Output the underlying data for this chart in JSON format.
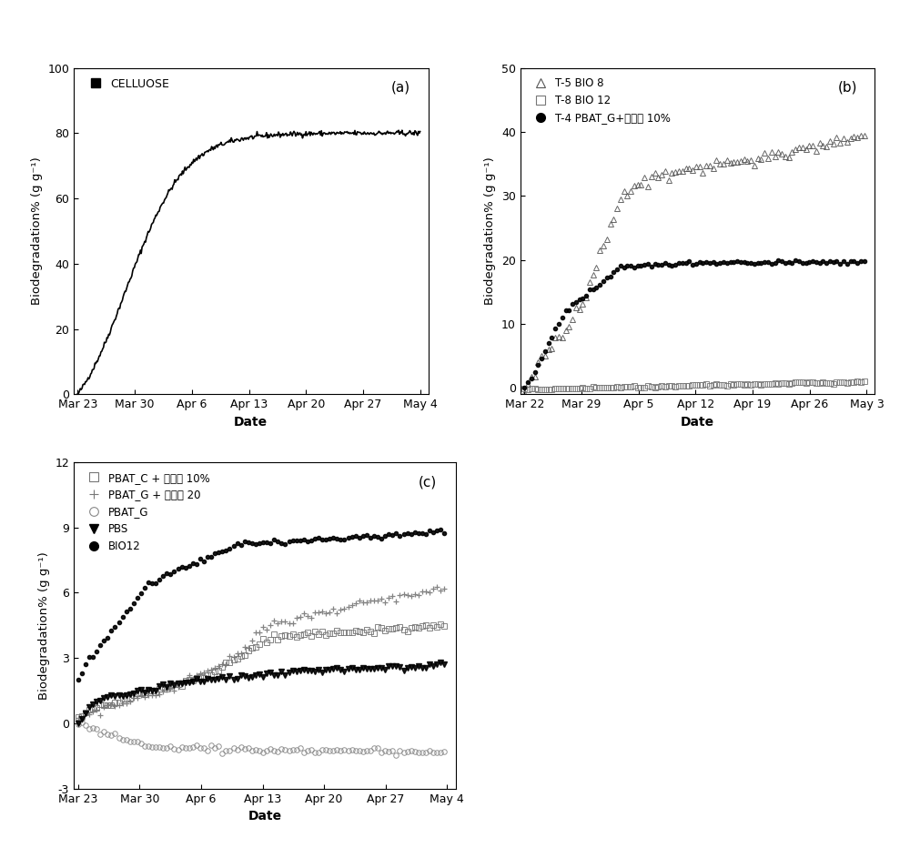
{
  "background_color": "#ffffff",
  "fig_width": 10.12,
  "fig_height": 9.32,
  "ylabel": "Biodegradation% (g g⁻¹)",
  "xlabel": "Date",
  "plot_a": {
    "label": "(a)",
    "legend_label": "CELLUOSE",
    "ylim": [
      0,
      100
    ],
    "yticks": [
      0,
      20,
      40,
      60,
      80,
      100
    ],
    "xtick_labels": [
      "Mar 23",
      "Mar 30",
      "Apr 6",
      "Apr 13",
      "Apr 20",
      "Apr 27",
      "May 4"
    ],
    "xtick_days": [
      0,
      7,
      14,
      21,
      28,
      35,
      42
    ]
  },
  "plot_b": {
    "label": "(b)",
    "ylim": [
      -1,
      50
    ],
    "yticks": [
      0,
      10,
      20,
      30,
      40,
      50
    ],
    "xtick_labels": [
      "Mar 22",
      "Mar 29",
      "Apr 5",
      "Apr 12",
      "Apr 19",
      "Apr 26",
      "May 3"
    ],
    "xtick_days": [
      0,
      7,
      14,
      21,
      28,
      35,
      42
    ]
  },
  "plot_c": {
    "label": "(c)",
    "ylim": [
      -3,
      12
    ],
    "yticks": [
      -3,
      0,
      3,
      6,
      9,
      12
    ],
    "xtick_labels": [
      "Mar 23",
      "Mar 30",
      "Apr 6",
      "Apr 13",
      "Apr 20",
      "Apr 27",
      "May 4"
    ],
    "xtick_days": [
      0,
      7,
      14,
      21,
      28,
      35,
      42
    ]
  }
}
